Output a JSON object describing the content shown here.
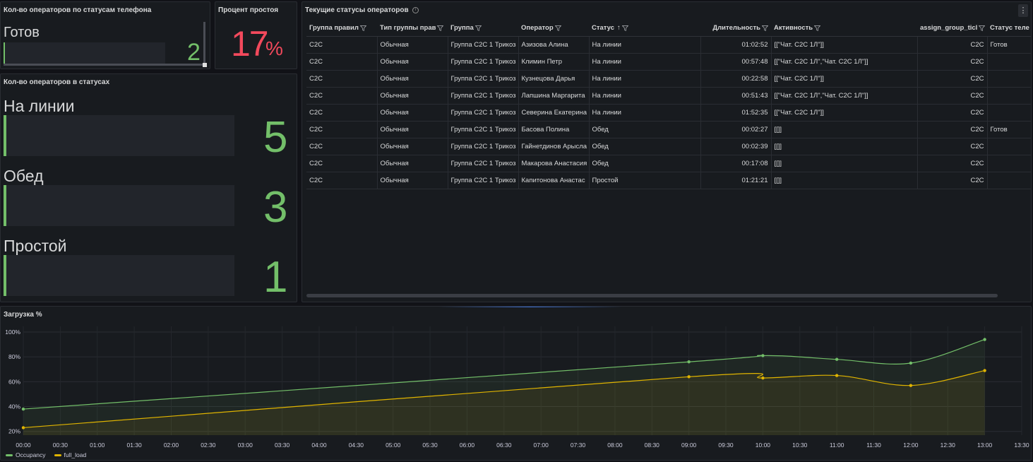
{
  "panel_phone_status": {
    "title": "Кол-во операторов по статусам телефона",
    "label": "Готов",
    "value": "2"
  },
  "panel_idle": {
    "title": "Процент простоя",
    "value": "17",
    "unit": "%"
  },
  "panel_status_counts": {
    "title": "Кол-во операторов в статусах",
    "rows": [
      {
        "label": "На линии",
        "value": "5"
      },
      {
        "label": "Обед",
        "value": "3"
      },
      {
        "label": "Простой",
        "value": "1"
      }
    ]
  },
  "panel_table": {
    "title": "Текущие статусы операторов",
    "info_glyph": "i",
    "menu_glyph": "⋮",
    "sort_glyph": "↑",
    "columns": [
      "Группа правил",
      "Тип группы прав",
      "Группа",
      "Оператор",
      "Статус",
      "Длительность",
      "Активность",
      "assign_group_ticl",
      "Статус теле"
    ],
    "rows": [
      [
        "С2С",
        "Обычная",
        "Группа С2С 1 Трикоз",
        "Азизова Алина",
        "На линии",
        "01:02:52",
        "[[\"Чат. С2С 1Л\"]]",
        "С2С",
        "Готов"
      ],
      [
        "С2С",
        "Обычная",
        "Группа С2С 1 Трикоз",
        "Климин Петр",
        "На линии",
        "00:57:48",
        "[[\"Чат. С2С 1Л\",\"Чат. С2С 1Л\"]]",
        "С2С",
        ""
      ],
      [
        "С2С",
        "Обычная",
        "Группа С2С 1 Трикоз",
        "Кузнецова Дарья",
        "На линии",
        "00:22:58",
        "[[\"Чат. С2С 1Л\"]]",
        "С2С",
        ""
      ],
      [
        "С2С",
        "Обычная",
        "Группа С2С 1 Трикоз",
        "Лапшина Маргарита",
        "На линии",
        "00:51:43",
        "[[\"Чат. С2С 1Л\",\"Чат. С2С 1Л\"]]",
        "С2С",
        ""
      ],
      [
        "С2С",
        "Обычная",
        "Группа С2С 1 Трикоз",
        "Северина Екатерина",
        "На линии",
        "01:52:35",
        "[[\"Чат. С2С 1Л\"]]",
        "С2С",
        ""
      ],
      [
        "С2С",
        "Обычная",
        "Группа С2С 1 Трикоз",
        "Басова Полина",
        "Обед",
        "00:02:27",
        "[[]]",
        "С2С",
        "Готов"
      ],
      [
        "С2С",
        "Обычная",
        "Группа С2С 1 Трикоз",
        "Гайнетдинов Арысла",
        "Обед",
        "00:02:39",
        "[[]]",
        "С2С",
        ""
      ],
      [
        "С2С",
        "Обычная",
        "Группа С2С 1 Трикоз",
        "Макарова Анастасия",
        "Обед",
        "00:17:08",
        "[[]]",
        "С2С",
        ""
      ],
      [
        "С2С",
        "Обычная",
        "Группа С2С 1 Трикоз",
        "Капитонова Анастас",
        "Простой",
        "01:21:21",
        "[[]]",
        "С2С",
        ""
      ]
    ]
  },
  "panel_load": {
    "title": "Загрузка %"
  },
  "colors": {
    "green": "#73bf69",
    "yellow": "#e0b400",
    "red": "#f2495c"
  },
  "chart_data": {
    "type": "line",
    "title": "Загрузка %",
    "x_ticks": [
      "00:00",
      "00:30",
      "01:00",
      "01:30",
      "02:00",
      "02:30",
      "03:00",
      "03:30",
      "04:00",
      "04:30",
      "05:00",
      "05:30",
      "06:00",
      "06:30",
      "07:00",
      "07:30",
      "08:00",
      "08:30",
      "09:00",
      "09:30",
      "10:00",
      "10:30",
      "11:00",
      "11:30",
      "12:00",
      "12:30",
      "13:00",
      "13:30"
    ],
    "y_ticks": [
      "100%",
      "80%",
      "60%",
      "40%",
      "20%"
    ],
    "ylim": [
      17,
      100
    ],
    "x": [
      "00:00",
      "09:00",
      "10:00",
      "11:00",
      "12:00",
      "13:00"
    ],
    "series": [
      {
        "name": "Occupancy",
        "color": "#73bf69",
        "values": [
          38,
          76,
          81,
          78,
          75,
          94
        ]
      },
      {
        "name": "full_load",
        "color": "#e0b400",
        "values": [
          23,
          64,
          63,
          65,
          57,
          69
        ]
      }
    ],
    "grid": true,
    "legend": "bottom-left"
  }
}
